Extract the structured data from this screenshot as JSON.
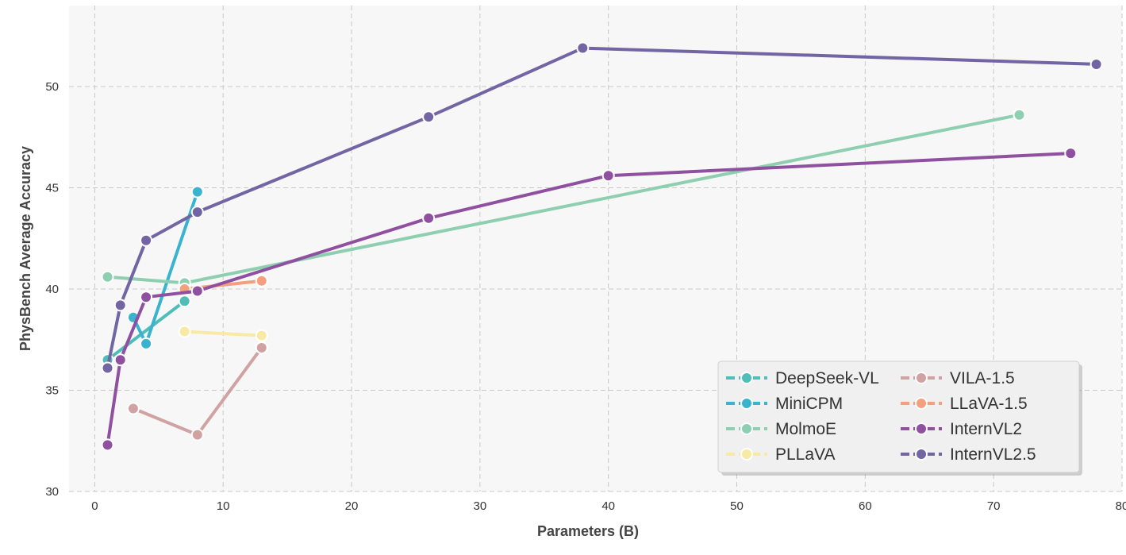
{
  "chart_data": {
    "type": "line",
    "title": "",
    "xlabel": "Parameters (B)",
    "ylabel": "PhysBench Average Accuracy",
    "xlim": [
      -2,
      80
    ],
    "ylim": [
      30,
      54
    ],
    "xticks": [
      0,
      10,
      20,
      30,
      40,
      50,
      60,
      70,
      80
    ],
    "yticks": [
      30,
      35,
      40,
      45,
      50
    ],
    "grid": true,
    "legend_position": "bottom-right",
    "legend_columns": 2,
    "series": [
      {
        "name": "DeepSeek-VL",
        "color": "#4fbdb8",
        "x": [
          1,
          7
        ],
        "y": [
          36.5,
          39.4
        ]
      },
      {
        "name": "MiniCPM",
        "color": "#3ab3cf",
        "x": [
          3,
          4,
          8
        ],
        "y": [
          38.6,
          37.3,
          44.8
        ]
      },
      {
        "name": "MolmoE",
        "color": "#8fcfb1",
        "x": [
          1,
          7,
          72
        ],
        "y": [
          40.6,
          40.3,
          48.6
        ]
      },
      {
        "name": "PLLaVA",
        "color": "#f8e9a4",
        "x": [
          7,
          13
        ],
        "y": [
          37.9,
          37.7
        ]
      },
      {
        "name": "VILA-1.5",
        "color": "#d0a2a2",
        "x": [
          3,
          8,
          13
        ],
        "y": [
          34.1,
          32.8,
          37.1
        ]
      },
      {
        "name": "LLaVA-1.5",
        "color": "#f4a07e",
        "x": [
          7,
          13
        ],
        "y": [
          40.0,
          40.4
        ]
      },
      {
        "name": "InternVL2",
        "color": "#9050a0",
        "x": [
          1,
          2,
          4,
          8,
          26,
          40,
          76
        ],
        "y": [
          32.3,
          36.5,
          39.6,
          39.9,
          43.5,
          45.6,
          46.7
        ]
      },
      {
        "name": "InternVL2.5",
        "color": "#7165a3",
        "x": [
          1,
          2,
          4,
          8,
          26,
          38,
          78
        ],
        "y": [
          36.1,
          39.2,
          42.4,
          43.8,
          48.5,
          51.9,
          51.1
        ]
      }
    ]
  }
}
